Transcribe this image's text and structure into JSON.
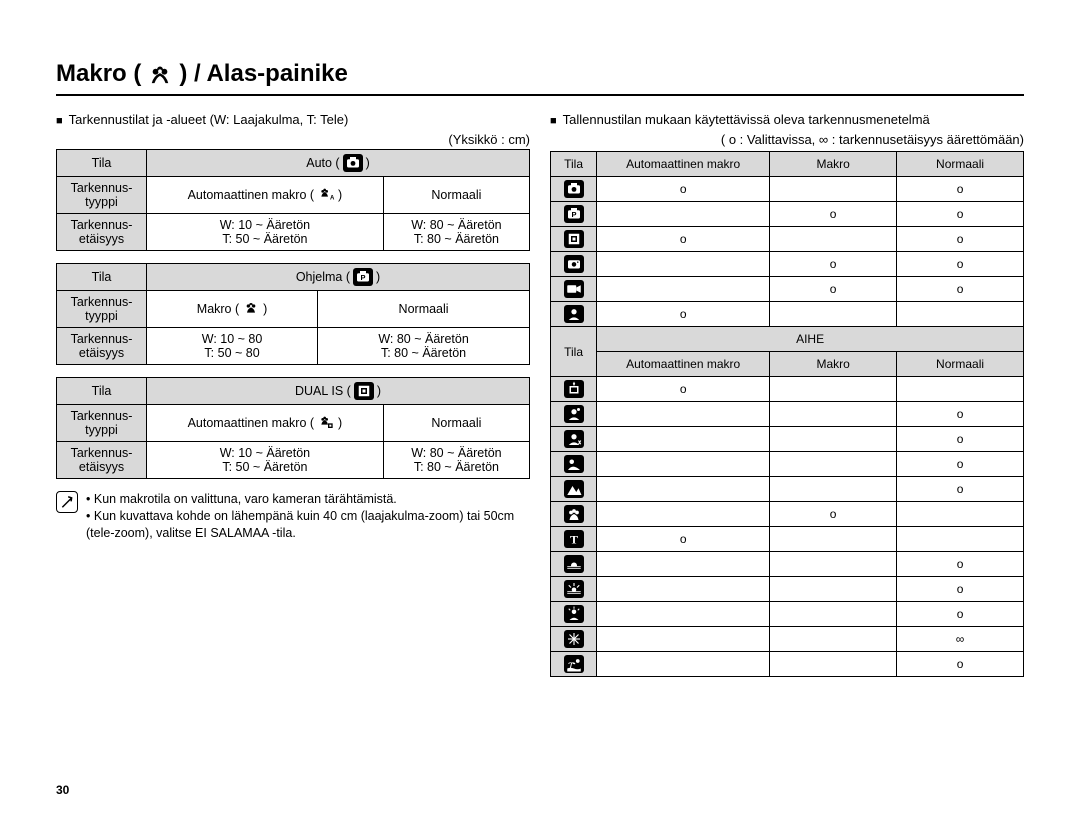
{
  "page_number": "30",
  "title_prefix": "Makro (",
  "title_suffix": ") / Alas-painike",
  "left": {
    "heading": "Tarkennustilat ja -alueet (W: Laajakulma, T: Tele)",
    "unit": "(Yksikkö : cm)",
    "labels": {
      "tila": "Tila",
      "tyyppi1": "Tarkennus-",
      "tyyppi2": "tyyppi",
      "etaisyys1": "Tarkennus-",
      "etaisyys2": "etäisyys"
    },
    "tables": [
      {
        "mode": "Auto",
        "icon": "camera",
        "col1_label": "Automaattinen makro",
        "col1_icon": "auto-flower",
        "col2_label": "Normaali",
        "dist_l1": "W: 10 ~ Ääretön",
        "dist_l2": "T: 50 ~ Ääretön",
        "dist_r1": "W: 80 ~ Ääretön",
        "dist_r2": "T: 80 ~ Ääretön"
      },
      {
        "mode": "Ohjelma",
        "icon": "camera-p",
        "col1_label": "Makro",
        "col1_icon": "flower",
        "col2_label": "Normaali",
        "dist_l1": "W: 10 ~ 80",
        "dist_l2": "T: 50 ~ 80",
        "dist_r1": "W: 80 ~ Ääretön",
        "dist_r2": "T: 80 ~ Ääretön"
      },
      {
        "mode": "DUAL IS",
        "icon": "dual-is",
        "col1_label": "Automaattinen makro",
        "col1_icon": "auto-flower-dual",
        "col2_label": "Normaali",
        "dist_l1": "W: 10 ~ Ääretön",
        "dist_l2": "T: 50 ~ Ääretön",
        "dist_r1": "W: 80 ~ Ääretön",
        "dist_r2": "T: 80 ~ Ääretön"
      }
    ],
    "note1": "Kun makrotila on valittuna, varo kameran tärähtämistä.",
    "note2": "Kun kuvattava kohde on lähempänä kuin 40 cm (laajakulma-zoom) tai 50cm (tele-zoom), valitse EI SALAMAA -tila."
  },
  "right": {
    "heading": "Tallennustilan mukaan käytettävissä oleva tarkennusmenetelmä",
    "legend": "( o : Valittavissa, ∞ : tarkennusetäisyys äärettömään)",
    "header": {
      "tila": "Tila",
      "c1": "Automaattinen makro",
      "c2": "Makro",
      "c3": "Normaali"
    },
    "aihe_label": "AIHE",
    "rows_top": [
      {
        "icon": "camera",
        "v": [
          "o",
          "",
          "o"
        ]
      },
      {
        "icon": "camera-p",
        "v": [
          "",
          "o",
          "o"
        ]
      },
      {
        "icon": "dual-is",
        "v": [
          "o",
          "",
          "o"
        ]
      },
      {
        "icon": "camera-s",
        "v": [
          "",
          "o",
          "o"
        ]
      },
      {
        "icon": "video",
        "v": [
          "",
          "o",
          "o"
        ]
      },
      {
        "icon": "portrait",
        "v": [
          "o",
          "",
          ""
        ]
      }
    ],
    "rows_bottom": [
      {
        "icon": "night",
        "v": [
          "o",
          "",
          ""
        ]
      },
      {
        "icon": "portrait2",
        "v": [
          "",
          "",
          "o"
        ]
      },
      {
        "icon": "children",
        "v": [
          "",
          "",
          "o"
        ]
      },
      {
        "icon": "landscape",
        "v": [
          "",
          "",
          "o"
        ]
      },
      {
        "icon": "closeup",
        "v": [
          "",
          "",
          "o"
        ]
      },
      {
        "icon": "flower2",
        "v": [
          "",
          "o",
          ""
        ]
      },
      {
        "icon": "text",
        "v": [
          "o",
          "",
          ""
        ]
      },
      {
        "icon": "sunset",
        "v": [
          "",
          "",
          "o"
        ]
      },
      {
        "icon": "dawn",
        "v": [
          "",
          "",
          "o"
        ]
      },
      {
        "icon": "backlight",
        "v": [
          "",
          "",
          "o"
        ]
      },
      {
        "icon": "firework",
        "v": [
          "",
          "",
          "∞"
        ]
      },
      {
        "icon": "beach",
        "v": [
          "",
          "",
          "o"
        ]
      }
    ]
  },
  "colors": {
    "header_bg": "#d9d9d9",
    "border": "#000000",
    "text": "#000000",
    "bg": "#ffffff"
  }
}
